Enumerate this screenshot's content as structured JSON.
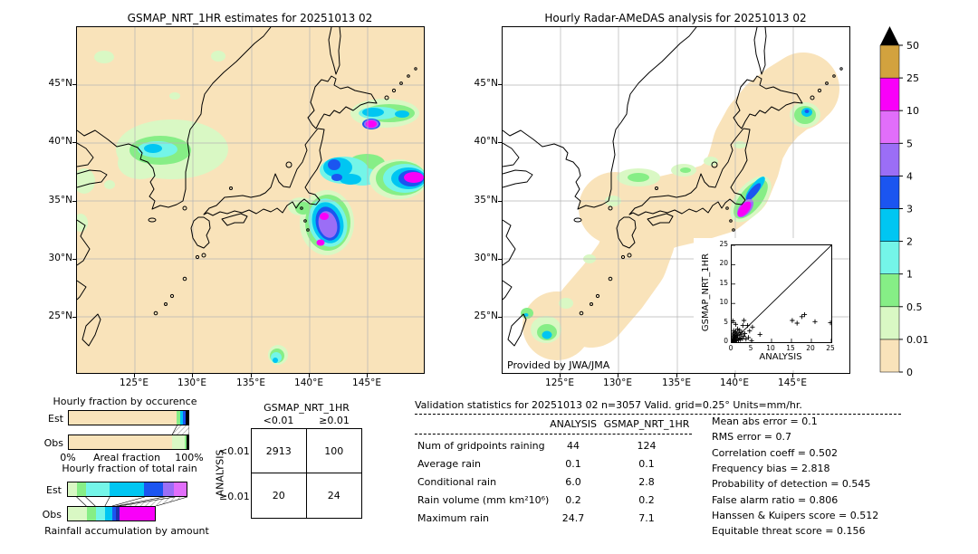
{
  "palette": {
    "cream": "#f9e3ba",
    "pale_green": "#d9f8c4",
    "light_green": "#86ee86",
    "light_cyan": "#74f5e8",
    "cyan": "#00c6f2",
    "blue": "#1b55f0",
    "purple": "#9b6ef6",
    "orchid": "#e16efa",
    "magenta": "#f900f9",
    "gold": "#d2a23e",
    "navy": "#1e2fae",
    "overflow": "#000000",
    "grid_line": "#b5b5b5"
  },
  "left_map": {
    "title": "GSMAP_NRT_1HR estimates for 20251013 02",
    "x_ticks": [
      "125°E",
      "130°E",
      "135°E",
      "140°E",
      "145°E"
    ],
    "y_ticks": [
      "45°N",
      "40°N",
      "35°N",
      "30°N",
      "25°N"
    ]
  },
  "right_map": {
    "title": "Hourly Radar-AMeDAS analysis for 20251013 02",
    "x_ticks": [
      "125°E",
      "130°E",
      "135°E",
      "140°E",
      "145°E"
    ],
    "y_ticks": [
      "45°N",
      "40°N",
      "35°N",
      "30°N",
      "25°N"
    ],
    "credit": "Provided by JWA/JMA"
  },
  "chart_data": [
    {
      "id": "inset_scatter",
      "type": "scatter",
      "xlabel": "ANALYSIS",
      "ylabel": "GSMAP_NRT_1HR",
      "xlim": [
        0,
        25
      ],
      "ylim": [
        0,
        25
      ],
      "x_ticks": [
        0,
        5,
        10,
        15,
        20,
        25
      ],
      "y_ticks": [
        0,
        5,
        10,
        15,
        20,
        25
      ],
      "diagonal": true,
      "marker": "+",
      "points": [
        [
          0.1,
          0.1
        ],
        [
          0.2,
          0.5
        ],
        [
          0.2,
          1.2
        ],
        [
          0.3,
          0.2
        ],
        [
          0.3,
          2.1
        ],
        [
          0.4,
          0.8
        ],
        [
          0.5,
          0.3
        ],
        [
          0.5,
          1.6
        ],
        [
          0.5,
          3.0
        ],
        [
          0.6,
          0.6
        ],
        [
          0.7,
          1.1
        ],
        [
          0.7,
          2.4
        ],
        [
          0.8,
          0.2
        ],
        [
          0.8,
          1.8
        ],
        [
          0.9,
          0.9
        ],
        [
          1.0,
          0.4
        ],
        [
          1.0,
          2.8
        ],
        [
          1.1,
          1.4
        ],
        [
          1.2,
          0.6
        ],
        [
          1.3,
          2.1
        ],
        [
          1.4,
          0.9
        ],
        [
          1.5,
          1.7
        ],
        [
          1.5,
          3.4
        ],
        [
          1.7,
          0.5
        ],
        [
          1.8,
          2.4
        ],
        [
          2.0,
          1.1
        ],
        [
          2.0,
          3.1
        ],
        [
          2.2,
          0.7
        ],
        [
          2.3,
          1.9
        ],
        [
          2.5,
          2.6
        ],
        [
          2.7,
          0.9
        ],
        [
          2.8,
          4.3
        ],
        [
          3.0,
          1.5
        ],
        [
          3.1,
          5.6
        ],
        [
          3.3,
          2.2
        ],
        [
          3.6,
          0.8
        ],
        [
          4.0,
          4.3
        ],
        [
          4.2,
          1.2
        ],
        [
          4.5,
          2.9
        ],
        [
          5.0,
          0.4
        ],
        [
          5.2,
          3.9
        ],
        [
          7.1,
          2.0
        ],
        [
          0.3,
          5.5
        ],
        [
          1.0,
          4.6
        ],
        [
          15.2,
          5.6
        ],
        [
          16.4,
          4.9
        ],
        [
          17.6,
          6.6
        ],
        [
          18.3,
          7.1
        ],
        [
          20.9,
          5.3
        ],
        [
          24.8,
          5.0
        ]
      ]
    },
    {
      "id": "occurrence_fraction",
      "type": "bar",
      "orientation": "horizontal-stacked",
      "title": "Hourly fraction by occurence",
      "xlabel": "Areal fraction",
      "x_range_labels": [
        "0%",
        "100%"
      ],
      "rows": [
        {
          "label": "Est",
          "total_pct": 100,
          "segments": [
            {
              "color_key": "cream",
              "pct": 90
            },
            {
              "color_key": "light_green",
              "pct": 3.2
            },
            {
              "color_key": "cyan",
              "pct": 2.6
            },
            {
              "color_key": "blue",
              "pct": 2
            },
            {
              "color_key": "overflow",
              "pct": 2.2
            }
          ]
        },
        {
          "label": "Obs",
          "total_pct": 100,
          "segments": [
            {
              "color_key": "cream",
              "pct": 86.5
            },
            {
              "color_key": "pale_green",
              "pct": 10.5
            },
            {
              "color_key": "light_green",
              "pct": 1.2
            },
            {
              "color_key": "overflow",
              "pct": 1.8
            }
          ]
        }
      ]
    },
    {
      "id": "total_rain_fraction",
      "type": "bar",
      "orientation": "horizontal-stacked",
      "title": "Hourly fraction of total rain",
      "caption": "Rainfall accumulation by amount",
      "rows": [
        {
          "label": "Est",
          "total_pct": 100,
          "segments": [
            {
              "color_key": "pale_green",
              "pct": 8
            },
            {
              "color_key": "light_green",
              "pct": 7.5
            },
            {
              "color_key": "light_cyan",
              "pct": 20
            },
            {
              "color_key": "cyan",
              "pct": 29
            },
            {
              "color_key": "blue",
              "pct": 16
            },
            {
              "color_key": "purple",
              "pct": 9
            },
            {
              "color_key": "orchid",
              "pct": 10.5
            }
          ]
        },
        {
          "label": "Obs",
          "total_pct": 74,
          "segments": [
            {
              "color_key": "pale_green",
              "pct": 16
            },
            {
              "color_key": "light_green",
              "pct": 7.5
            },
            {
              "color_key": "light_cyan",
              "pct": 8
            },
            {
              "color_key": "cyan",
              "pct": 6
            },
            {
              "color_key": "blue",
              "pct": 3.5
            },
            {
              "color_key": "navy",
              "pct": 2.5
            },
            {
              "color_key": "magenta",
              "pct": 30.5
            }
          ]
        }
      ]
    },
    {
      "id": "contingency_table",
      "type": "table",
      "col_group": "GSMAP_NRT_1HR",
      "row_group": "ANALYSIS",
      "col_labels": [
        "<0.01",
        "≥0.01"
      ],
      "row_labels": [
        "<0.01",
        "≥0.01"
      ],
      "values": [
        [
          "2913",
          "100"
        ],
        [
          "20",
          "24"
        ]
      ]
    },
    {
      "id": "validation_stats",
      "type": "table",
      "title": "Validation statistics for 20251013 02  n=3057 Valid. grid=0.25° Units=mm/hr.",
      "columns": [
        "ANALYSIS",
        "GSMAP_NRT_1HR"
      ],
      "rows": [
        {
          "label": "Num of gridpoints raining",
          "values": [
            "44",
            "124"
          ]
        },
        {
          "label": "Average rain",
          "values": [
            "0.1",
            "0.1"
          ]
        },
        {
          "label": "Conditional rain",
          "values": [
            "6.0",
            "2.8"
          ]
        },
        {
          "label": "Rain volume (mm km²10⁶)",
          "values": [
            "0.2",
            "0.2"
          ]
        },
        {
          "label": "Maximum rain",
          "values": [
            "24.7",
            "7.1"
          ]
        }
      ],
      "metrics": [
        {
          "label": "Mean abs error",
          "value": "0.1"
        },
        {
          "label": "RMS error",
          "value": "0.7"
        },
        {
          "label": "Correlation coeff",
          "value": "0.502"
        },
        {
          "label": "Frequency bias",
          "value": "2.818"
        },
        {
          "label": "Probability of detection",
          "value": "0.545"
        },
        {
          "label": "False alarm ratio",
          "value": "0.806"
        },
        {
          "label": "Hanssen & Kuipers score",
          "value": "0.512"
        },
        {
          "label": "Equitable threat score",
          "value": "0.156"
        }
      ]
    },
    {
      "id": "colorbar",
      "type": "colorbar",
      "units": "mm/hr",
      "levels": [
        "0",
        "0.01",
        "0.5",
        "1",
        "2",
        "3",
        "4",
        "5",
        "10",
        "25",
        "50"
      ],
      "colors": [
        "#f9e3ba",
        "#d9f8c4",
        "#86ee86",
        "#74f5e8",
        "#00c6f2",
        "#1b55f0",
        "#9b6ef6",
        "#e16efa",
        "#f900f9",
        "#d2a23e"
      ],
      "overflow_color": "#000000"
    }
  ]
}
